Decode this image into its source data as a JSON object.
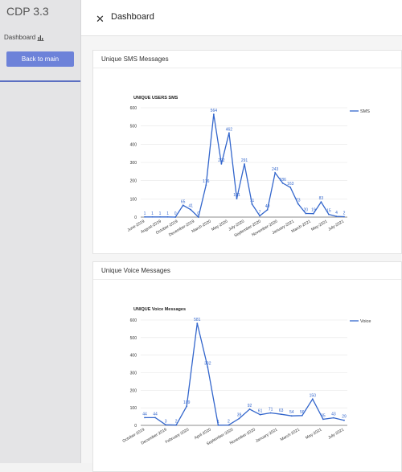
{
  "sidebar": {
    "app_title": "CDP 3.3",
    "dashboard_label": "Dashboard",
    "dashboard_icon": "bar-chart-icon",
    "back_button": "Back to main"
  },
  "header": {
    "title": "Dashboard",
    "close_icon": "close-icon"
  },
  "cards": [
    {
      "title": "Unique SMS Messages"
    },
    {
      "title": "Unique Voice Messages"
    }
  ],
  "chart_data": [
    {
      "type": "line",
      "title": "UNIQUE USERS SMS",
      "series": [
        {
          "name": "SMS",
          "values": [
            1,
            1,
            1,
            1,
            0,
            65,
            41,
            0,
            176,
            564,
            292,
            462,
            101,
            291,
            71,
            7,
            40,
            243,
            186,
            163,
            73,
            20,
            19,
            83,
            15,
            4,
            2
          ]
        }
      ],
      "x_tick_labels": [
        "June-2019",
        "August-2019",
        "October-2019",
        "December-2019",
        "March-2020",
        "May-2020",
        "July-2020",
        "September-2020",
        "November-2020",
        "January-2021",
        "March-2021",
        "May-2021",
        "July-2021"
      ],
      "ylim": [
        0,
        600
      ],
      "yticks": [
        0,
        100,
        200,
        300,
        400,
        500,
        600
      ],
      "legend": "top-right",
      "grid": true,
      "color": "#3366cc"
    },
    {
      "type": "line",
      "title": "UNIQUE Voice Messages",
      "series": [
        {
          "name": "Voice",
          "values": [
            44,
            44,
            3,
            2,
            109,
            581,
            332,
            1,
            2,
            39,
            92,
            61,
            71,
            63,
            54,
            56,
            150,
            35,
            43,
            29
          ]
        }
      ],
      "x_tick_labels": [
        "October-2019",
        "December-2019",
        "February-2020",
        "April-2020",
        "September-2020",
        "November-2020",
        "January-2021",
        "March-2021",
        "May-2021",
        "July-2021"
      ],
      "ylim": [
        0,
        600
      ],
      "yticks": [
        0,
        100,
        200,
        300,
        400,
        500,
        600
      ],
      "legend": "top-right",
      "grid": true,
      "color": "#3366cc"
    }
  ]
}
